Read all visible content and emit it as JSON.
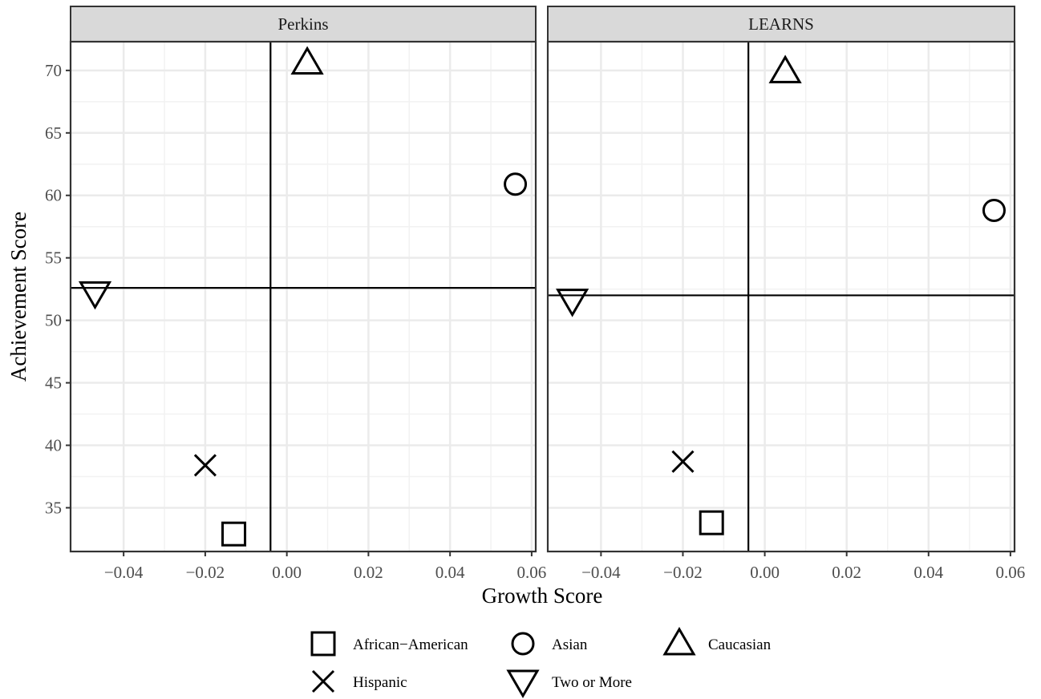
{
  "chart_data": {
    "type": "scatter",
    "xlabel": "Growth Score",
    "ylabel": "Achievement Score",
    "xlim": [
      -0.053,
      0.061
    ],
    "ylim": [
      31.5,
      72.3
    ],
    "x_ticks": [
      -0.04,
      -0.02,
      0.0,
      0.02,
      0.04,
      0.06
    ],
    "x_tick_labels": [
      "−0.04",
      "−0.02",
      "0.00",
      "0.02",
      "0.04",
      "0.06"
    ],
    "y_ticks": [
      35,
      40,
      45,
      50,
      55,
      60,
      65,
      70
    ],
    "y_tick_labels": [
      "35",
      "40",
      "45",
      "50",
      "55",
      "60",
      "65",
      "70"
    ],
    "grid": true,
    "legend_position": "bottom",
    "legend": [
      {
        "label": "African−American",
        "shape": "square"
      },
      {
        "label": "Asian",
        "shape": "circle"
      },
      {
        "label": "Caucasian",
        "shape": "triangle-up"
      },
      {
        "label": "Hispanic",
        "shape": "cross"
      },
      {
        "label": "Two or More",
        "shape": "triangle-down"
      }
    ],
    "panels": [
      {
        "title": "Perkins",
        "vline": -0.004,
        "hline": 52.6,
        "points": [
          {
            "group": "African−American",
            "shape": "square",
            "x": -0.013,
            "y": 32.9
          },
          {
            "group": "Asian",
            "shape": "circle",
            "x": 0.056,
            "y": 60.9
          },
          {
            "group": "Caucasian",
            "shape": "triangle-up",
            "x": 0.005,
            "y": 70.6
          },
          {
            "group": "Hispanic",
            "shape": "cross",
            "x": -0.02,
            "y": 38.4
          },
          {
            "group": "Two or More",
            "shape": "triangle-down",
            "x": -0.047,
            "y": 52.2
          }
        ]
      },
      {
        "title": "LEARNS",
        "vline": -0.004,
        "hline": 52.0,
        "points": [
          {
            "group": "African−American",
            "shape": "square",
            "x": -0.013,
            "y": 33.8
          },
          {
            "group": "Asian",
            "shape": "circle",
            "x": 0.056,
            "y": 58.8
          },
          {
            "group": "Caucasian",
            "shape": "triangle-up",
            "x": 0.005,
            "y": 69.9
          },
          {
            "group": "Hispanic",
            "shape": "cross",
            "x": -0.02,
            "y": 38.7
          },
          {
            "group": "Two or More",
            "shape": "triangle-down",
            "x": -0.047,
            "y": 51.6
          }
        ]
      }
    ]
  }
}
